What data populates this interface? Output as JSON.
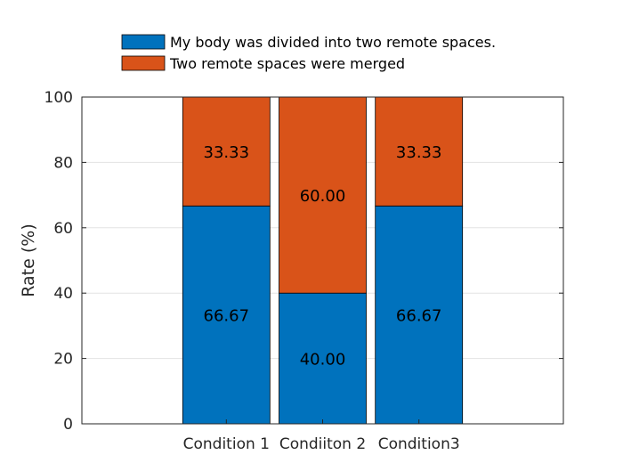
{
  "chart_data": {
    "type": "bar",
    "stacked": true,
    "categories": [
      "Condition 1",
      "Condiiton 2",
      "Condition3"
    ],
    "series": [
      {
        "name": "My body was divided into two remote spaces.",
        "values": [
          66.67,
          40.0,
          66.67
        ],
        "labels": [
          "66.67",
          "40.00",
          "66.67"
        ],
        "color": "#0072BD"
      },
      {
        "name": "Two remote spaces were merged",
        "values": [
          33.33,
          60.0,
          33.33
        ],
        "labels": [
          "33.33",
          "60.00",
          "33.33"
        ],
        "color": "#D95319"
      }
    ],
    "title": "",
    "xlabel": "",
    "ylabel": "Rate (%)",
    "ylim": [
      0,
      100
    ],
    "yticks": [
      "0",
      "20",
      "40",
      "60",
      "80",
      "100"
    ],
    "grid": "y",
    "legend_position": "top-center"
  }
}
